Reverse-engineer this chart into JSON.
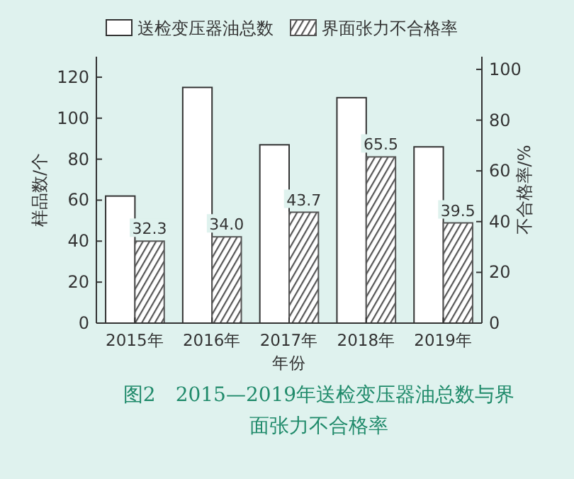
{
  "chart_data": {
    "type": "bar",
    "title": "图2　2015—2019年送检变压器油总数与界面张力不合格率",
    "xlabel": "年份",
    "ylabel": "样品数/个",
    "y2label": "不合格率/%",
    "categories": [
      "2015年",
      "2016年",
      "2017年",
      "2018年",
      "2019年"
    ],
    "series": [
      {
        "name": "送检变压器油总数",
        "color": "#ffffff",
        "values": [
          62,
          115,
          87,
          110,
          86
        ]
      },
      {
        "name": "界面张力不合格率",
        "color": "#555555",
        "axis": "y2",
        "values": [
          32.3,
          34.0,
          43.7,
          65.5,
          39.5
        ],
        "value_labels": [
          "32.3",
          "34.0",
          "43.7",
          "65.5",
          "39.5"
        ]
      }
    ],
    "ylim": [
      0,
      130
    ],
    "yticks": [
      0,
      20,
      40,
      60,
      80,
      100,
      120
    ],
    "y2lim": [
      0,
      105
    ],
    "y2ticks": [
      0,
      20,
      40,
      60,
      80,
      100
    ],
    "legend": "top",
    "grid": false
  }
}
